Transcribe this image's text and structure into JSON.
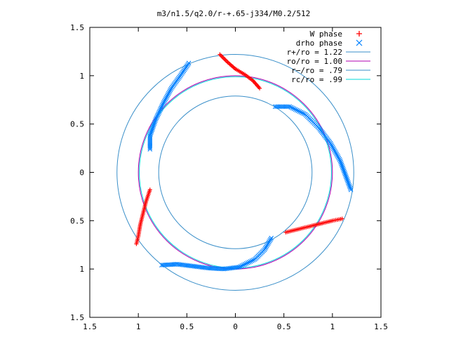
{
  "chart_data": {
    "type": "scatter",
    "title": "m3/n1.5/q2.0/r-+.65-j334/M0.2/512",
    "xlim": [
      -1.5,
      1.5
    ],
    "ylim": [
      -1.5,
      1.5
    ],
    "x_ticks": [
      -1.5,
      -1,
      -0.5,
      0,
      0.5,
      1,
      1.5
    ],
    "y_ticks": [
      -1.5,
      -1,
      -0.5,
      0,
      0.5,
      1,
      1.5
    ],
    "x_tick_labels": [
      "1.5",
      "1",
      "0.5",
      "0",
      "0.5",
      "1",
      "1.5"
    ],
    "y_tick_labels": [
      "1.5",
      "1",
      "0.5",
      "0",
      "0.5",
      "1",
      "1.5"
    ],
    "grid": false,
    "legend_position": "top-right",
    "colors": {
      "w_phase": "#ff0000",
      "drho_phase": "#0080ff",
      "r_plus": "#3a8fc9",
      "ro": "#b000b0",
      "r_minus": "#3a8fc9",
      "rc": "#00d8d8"
    },
    "circles": [
      {
        "name": "r+/ro = 1.22",
        "radius": 1.22
      },
      {
        "name": "ro/ro = 1.00",
        "radius": 1.0
      },
      {
        "name": "r−/ro = .79",
        "radius": 0.79
      },
      {
        "name": "rc/ro = .99",
        "radius": 0.99
      }
    ],
    "series": [
      {
        "name": "W phase",
        "marker": "plus",
        "arms": [
          [
            [
              -0.16,
              1.22
            ],
            [
              -0.08,
              1.14
            ],
            [
              0.0,
              1.07
            ],
            [
              0.1,
              1.01
            ],
            [
              0.18,
              0.95
            ],
            [
              0.25,
              0.87
            ]
          ],
          [
            [
              -0.88,
              -0.18
            ],
            [
              -0.92,
              -0.3
            ],
            [
              -0.95,
              -0.42
            ],
            [
              -0.98,
              -0.54
            ],
            [
              -1.0,
              -0.66
            ],
            [
              -1.02,
              -0.74
            ]
          ],
          [
            [
              0.52,
              -0.62
            ],
            [
              0.64,
              -0.59
            ],
            [
              0.76,
              -0.56
            ],
            [
              0.88,
              -0.53
            ],
            [
              1.0,
              -0.5
            ],
            [
              1.1,
              -0.48
            ]
          ]
        ]
      },
      {
        "name": "drho phase",
        "marker": "x",
        "arms": [
          [
            [
              -0.48,
              1.13
            ],
            [
              -0.56,
              1.01
            ],
            [
              -0.66,
              0.87
            ],
            [
              -0.74,
              0.72
            ],
            [
              -0.82,
              0.55
            ],
            [
              -0.88,
              0.38
            ],
            [
              -0.88,
              0.24
            ]
          ],
          [
            [
              0.41,
              0.68
            ],
            [
              0.56,
              0.68
            ],
            [
              0.72,
              0.6
            ],
            [
              0.86,
              0.46
            ],
            [
              0.98,
              0.3
            ],
            [
              1.08,
              0.12
            ],
            [
              1.19,
              -0.18
            ]
          ],
          [
            [
              -0.76,
              -0.96
            ],
            [
              -0.6,
              -0.95
            ],
            [
              -0.44,
              -0.97
            ],
            [
              -0.28,
              -0.99
            ],
            [
              -0.12,
              -1.0
            ],
            [
              0.04,
              -0.98
            ],
            [
              0.2,
              -0.9
            ],
            [
              0.3,
              -0.8
            ],
            [
              0.37,
              -0.68
            ]
          ]
        ]
      }
    ]
  }
}
